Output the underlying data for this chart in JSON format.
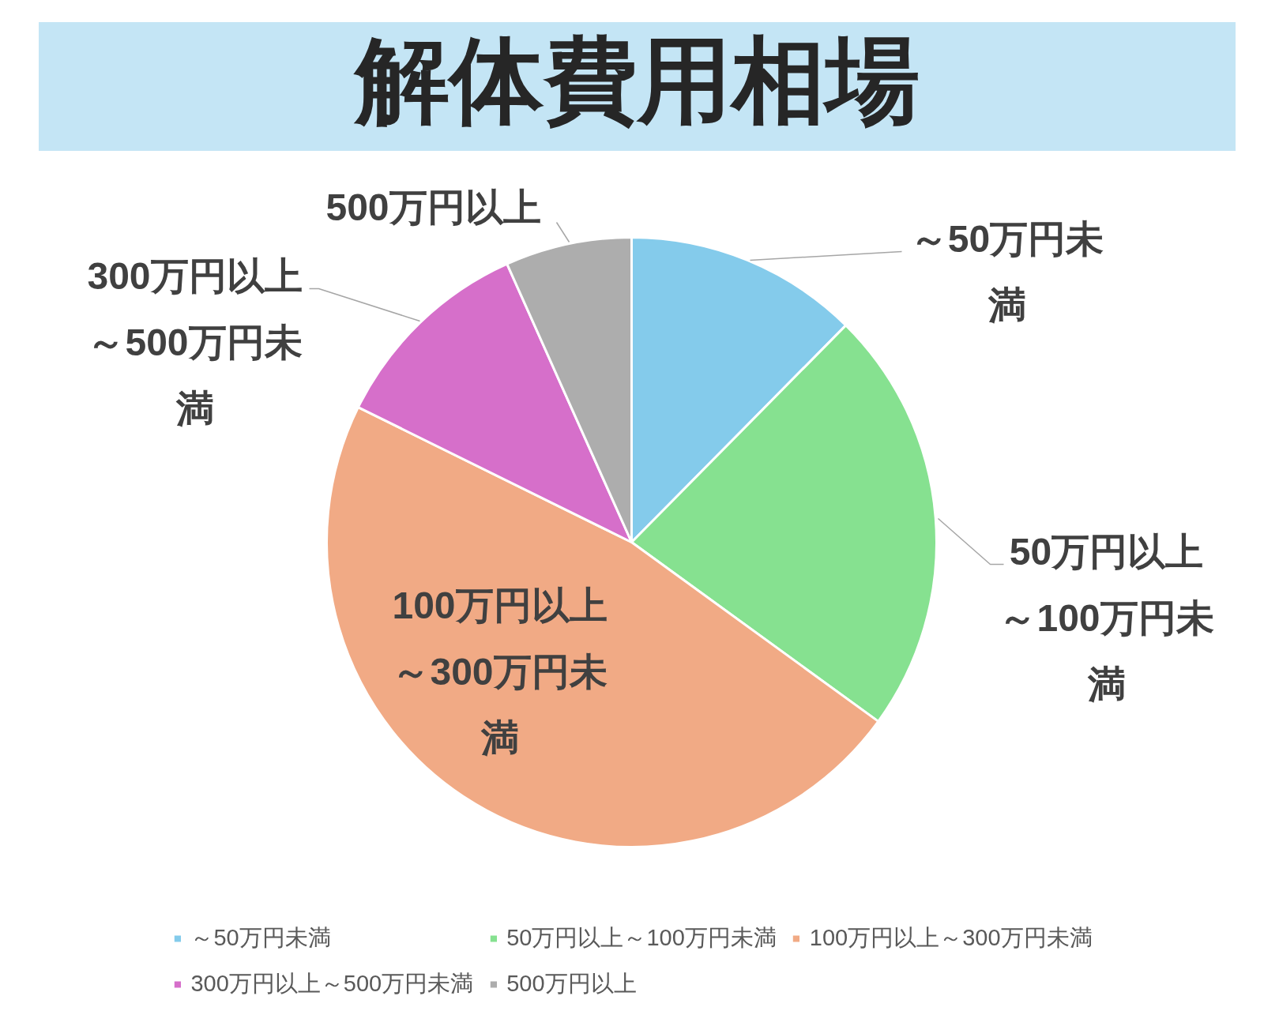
{
  "chart_data": {
    "type": "pie",
    "title": "解体費用相場",
    "categories": [
      "～50万円未満",
      "50万円以上～100万円未満",
      "100万円以上～300万円未満",
      "300万円以上～500万円未満",
      "500万円以上"
    ],
    "values": [
      12.4,
      22.6,
      47.3,
      11.0,
      6.7
    ],
    "colors": [
      "#84cbeb",
      "#86e190",
      "#f1aa85",
      "#d66fca",
      "#adadad"
    ],
    "legend": "bottom"
  }
}
